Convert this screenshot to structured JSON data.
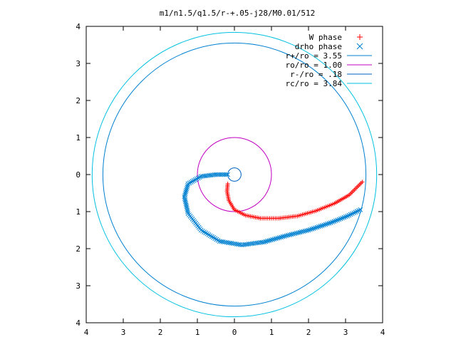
{
  "chart_data": {
    "type": "scatter",
    "title": "m1/n1.5/q1.5/r-+.05-j28/M0.01/512",
    "xlabel": "",
    "ylabel": "",
    "xlim": [
      -4,
      4
    ],
    "ylim": [
      -4,
      4
    ],
    "x_ticks": [
      {
        "value": -4,
        "label": "4"
      },
      {
        "value": -3,
        "label": "3"
      },
      {
        "value": -2,
        "label": "2"
      },
      {
        "value": -1,
        "label": "1"
      },
      {
        "value": 0,
        "label": "0"
      },
      {
        "value": 1,
        "label": "1"
      },
      {
        "value": 2,
        "label": "2"
      },
      {
        "value": 3,
        "label": "3"
      },
      {
        "value": 4,
        "label": "4"
      }
    ],
    "y_ticks": [
      {
        "value": 4,
        "label": "4"
      },
      {
        "value": 3,
        "label": "3"
      },
      {
        "value": 2,
        "label": "2"
      },
      {
        "value": 1,
        "label": "1"
      },
      {
        "value": 0,
        "label": "0"
      },
      {
        "value": -1,
        "label": "1"
      },
      {
        "value": -2,
        "label": "2"
      },
      {
        "value": -3,
        "label": "3"
      },
      {
        "value": -4,
        "label": "4"
      }
    ],
    "grid": false,
    "legend_position": "top-right",
    "series": [
      {
        "name": "W phase",
        "marker": "+",
        "color": "#ff0000",
        "points": [
          [
            -0.18,
            -0.25
          ],
          [
            -0.2,
            -0.45
          ],
          [
            -0.15,
            -0.7
          ],
          [
            0.0,
            -0.95
          ],
          [
            0.3,
            -1.1
          ],
          [
            0.7,
            -1.18
          ],
          [
            1.2,
            -1.18
          ],
          [
            1.7,
            -1.12
          ],
          [
            2.2,
            -0.98
          ],
          [
            2.7,
            -0.78
          ],
          [
            3.1,
            -0.55
          ],
          [
            3.45,
            -0.2
          ]
        ]
      },
      {
        "name": "drho phase",
        "marker": "x",
        "color": "#0080d0",
        "points": [
          [
            -0.18,
            0.0
          ],
          [
            -0.5,
            0.0
          ],
          [
            -0.9,
            -0.05
          ],
          [
            -1.25,
            -0.25
          ],
          [
            -1.35,
            -0.6
          ],
          [
            -1.25,
            -1.05
          ],
          [
            -0.9,
            -1.5
          ],
          [
            -0.4,
            -1.8
          ],
          [
            0.2,
            -1.9
          ],
          [
            0.8,
            -1.82
          ],
          [
            1.4,
            -1.65
          ],
          [
            2.0,
            -1.5
          ],
          [
            2.6,
            -1.3
          ],
          [
            3.05,
            -1.12
          ],
          [
            3.4,
            -0.95
          ]
        ]
      },
      {
        "name": "r+/ro = 3.55",
        "type": "circle",
        "radius": 3.55,
        "color": "#0080d0"
      },
      {
        "name": "ro/ro = 1.00",
        "type": "circle",
        "radius": 1.0,
        "color": "#c000c0"
      },
      {
        "name": "r-/ro = .18",
        "type": "circle",
        "radius": 0.18,
        "color": "#0060c0"
      },
      {
        "name": "rc/ro = 3.84",
        "type": "circle",
        "radius": 3.84,
        "color": "#00c0e0"
      }
    ]
  }
}
